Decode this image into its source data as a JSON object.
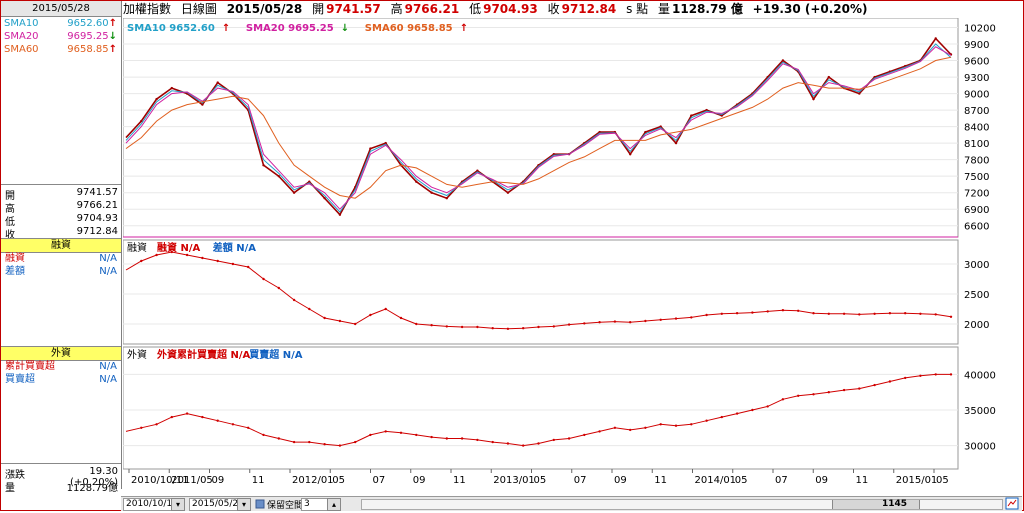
{
  "left": {
    "date": "2015/05/28",
    "sma": [
      {
        "label": "SMA10",
        "value": "9652.60",
        "arrow": "↑",
        "color": "#22a0c8",
        "arrow_color": "#d00000"
      },
      {
        "label": "SMA20",
        "value": "9695.25",
        "arrow": "↓",
        "color": "#d020a0",
        "arrow_color": "#109010"
      },
      {
        "label": "SMA60",
        "value": "9658.85",
        "arrow": "↑",
        "color": "#e06020",
        "arrow_color": "#d00000"
      }
    ],
    "ohlc": [
      {
        "label": "開",
        "value": "9741.57"
      },
      {
        "label": "高",
        "value": "9766.21"
      },
      {
        "label": "低",
        "value": "9704.93"
      },
      {
        "label": "收",
        "value": "9712.84"
      }
    ],
    "margin_title": "融資",
    "margin_rows": [
      {
        "label": "融資",
        "value": "N/A"
      },
      {
        "label": "差額",
        "value": "N/A"
      }
    ],
    "foreign_title": "外資",
    "foreign_rows": [
      {
        "label": "累計買賣超",
        "value": "N/A"
      },
      {
        "label": "買賣超",
        "value": "N/A"
      }
    ],
    "change_label": "漲跌",
    "change_value": "19.30 (+0.20%)",
    "volume_label": "量",
    "volume_value": "1128.79億"
  },
  "topbar": {
    "name": "加權指數",
    "period": "日線圖",
    "date": "2015/05/28",
    "open_label": "開",
    "open": "9741.57",
    "high_label": "高",
    "high": "9766.21",
    "low_label": "低",
    "low": "9704.93",
    "close_label": "收",
    "close": "9712.84",
    "s_label": "s 點",
    "vol_label": "量",
    "vol": "1128.79 億",
    "change": "+19.30 (+0.20%)"
  },
  "main_legend": [
    {
      "text": "SMA10 9652.60",
      "arrow": "↑",
      "color": "#22a0c8",
      "arrow_color": "#d00000"
    },
    {
      "text": "SMA20 9695.25",
      "arrow": "↓",
      "color": "#d020a0",
      "arrow_color": "#109010"
    },
    {
      "text": "SMA60 9658.85",
      "arrow": "↑",
      "color": "#e06020",
      "arrow_color": "#d00000"
    }
  ],
  "margin_legend": {
    "title": "融資",
    "items": [
      {
        "text": "融資 N/A",
        "color": "#d00000"
      },
      {
        "text": "差額 N/A",
        "color": "#1060c0"
      }
    ]
  },
  "foreign_legend": {
    "title": "外資",
    "items": [
      {
        "text": "外資累計買賣超 N/A",
        "color": "#d00000"
      },
      {
        "text": "買賣超 N/A",
        "color": "#1060c0"
      }
    ]
  },
  "x_labels": [
    "2010/10/11",
    "2011/05",
    "09",
    "11",
    "2012/01",
    "05",
    "07",
    "09",
    "11",
    "2013/01",
    "05",
    "07",
    "09",
    "11",
    "2014/01",
    "05",
    "07",
    "09",
    "11",
    "2015/01",
    "05"
  ],
  "bottom": {
    "start_date": "2010/10/11",
    "end_date": "2015/05/28",
    "reserve_label": "保留空間",
    "reserve_value": "3",
    "count": "1145"
  },
  "chart_data": [
    {
      "type": "line",
      "title": "",
      "y_ticks": [
        6600,
        6900,
        7200,
        7500,
        7800,
        8100,
        8400,
        8700,
        9000,
        9300,
        9600,
        9900,
        10200
      ],
      "ylim": [
        6450,
        10300
      ],
      "x_tick_labels": [
        "2010/10/11",
        "2011/05",
        "09",
        "11",
        "2012/01",
        "05",
        "07",
        "09",
        "11",
        "2013/01",
        "05",
        "07",
        "09",
        "11",
        "2014/01",
        "05",
        "07",
        "09",
        "11",
        "2015/01",
        "05"
      ],
      "series": [
        {
          "name": "加權指數",
          "values": [
            8200,
            8500,
            8900,
            9100,
            9000,
            8800,
            9200,
            9000,
            8700,
            7700,
            7500,
            7200,
            7400,
            7100,
            6800,
            7300,
            8000,
            8100,
            7700,
            7400,
            7200,
            7100,
            7400,
            7600,
            7400,
            7200,
            7400,
            7700,
            7900,
            7900,
            8100,
            8300,
            8300,
            7900,
            8300,
            8400,
            8100,
            8600,
            8700,
            8600,
            8800,
            9000,
            9300,
            9600,
            9400,
            8900,
            9300,
            9100,
            9000,
            9300,
            9400,
            9500,
            9600,
            10000,
            9710
          ]
        },
        {
          "name": "SMA10",
          "values": [
            8150,
            8450,
            8850,
            9050,
            9020,
            8830,
            9150,
            9020,
            8750,
            7800,
            7550,
            7250,
            7380,
            7150,
            6850,
            7250,
            7950,
            8080,
            7750,
            7450,
            7250,
            7150,
            7380,
            7580,
            7420,
            7250,
            7380,
            7680,
            7880,
            7900,
            8080,
            8280,
            8290,
            7950,
            8270,
            8380,
            8150,
            8560,
            8680,
            8620,
            8780,
            8980,
            9270,
            9570,
            9420,
            8950,
            9250,
            9120,
            9030,
            9280,
            9380,
            9480,
            9590,
            9900,
            9653
          ]
        },
        {
          "name": "SMA20",
          "values": [
            8100,
            8400,
            8800,
            9000,
            9030,
            8860,
            9100,
            9040,
            8800,
            7900,
            7600,
            7300,
            7360,
            7200,
            6900,
            7200,
            7900,
            8060,
            7800,
            7500,
            7300,
            7200,
            7360,
            7560,
            7440,
            7300,
            7360,
            7660,
            7860,
            7900,
            8060,
            8260,
            8280,
            8000,
            8240,
            8360,
            8200,
            8520,
            8660,
            8640,
            8760,
            8960,
            9240,
            9540,
            9440,
            9000,
            9200,
            9140,
            9060,
            9260,
            9360,
            9460,
            9580,
            9850,
            9695
          ]
        },
        {
          "name": "SMA60",
          "values": [
            8000,
            8200,
            8500,
            8700,
            8800,
            8850,
            8900,
            8950,
            8900,
            8600,
            8100,
            7700,
            7500,
            7300,
            7150,
            7100,
            7300,
            7600,
            7700,
            7650,
            7500,
            7350,
            7300,
            7350,
            7400,
            7380,
            7350,
            7450,
            7600,
            7750,
            7850,
            8000,
            8150,
            8150,
            8150,
            8250,
            8300,
            8350,
            8450,
            8550,
            8650,
            8750,
            8900,
            9100,
            9200,
            9150,
            9100,
            9100,
            9080,
            9150,
            9250,
            9350,
            9450,
            9600,
            9659
          ]
        }
      ]
    },
    {
      "type": "bar",
      "title": "融資",
      "y_ticks": [
        2000,
        2500,
        3000
      ],
      "ylim": [
        1700,
        3300
      ],
      "series": [
        {
          "name": "融資",
          "values": [
            2900,
            3050,
            3150,
            3200,
            3150,
            3100,
            3050,
            3000,
            2950,
            2750,
            2600,
            2400,
            2250,
            2100,
            2050,
            2000,
            2150,
            2250,
            2100,
            2000,
            1980,
            1960,
            1950,
            1950,
            1930,
            1920,
            1930,
            1950,
            1960,
            1990,
            2010,
            2030,
            2040,
            2030,
            2050,
            2070,
            2090,
            2110,
            2150,
            2170,
            2180,
            2190,
            2210,
            2230,
            2220,
            2180,
            2170,
            2170,
            2160,
            2170,
            2180,
            2180,
            2170,
            2160,
            2120
          ]
        }
      ]
    },
    {
      "type": "bar",
      "title": "外資",
      "y_ticks": [
        30000,
        35000,
        40000
      ],
      "ylim": [
        27000,
        43000
      ],
      "series": [
        {
          "name": "外資累計買賣超",
          "values": [
            32000,
            32500,
            33000,
            34000,
            34500,
            34000,
            33500,
            33000,
            32500,
            31500,
            31000,
            30500,
            30500,
            30200,
            30000,
            30500,
            31500,
            32000,
            31800,
            31500,
            31200,
            31000,
            31000,
            30800,
            30500,
            30300,
            30000,
            30300,
            30800,
            31000,
            31500,
            32000,
            32500,
            32200,
            32500,
            33000,
            32800,
            33000,
            33500,
            34000,
            34500,
            35000,
            35500,
            36500,
            37000,
            37200,
            37500,
            37800,
            38000,
            38500,
            39000,
            39500,
            39800,
            40000,
            40000
          ]
        }
      ]
    }
  ]
}
